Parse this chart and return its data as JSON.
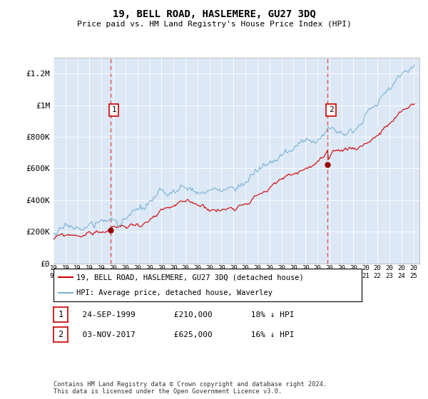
{
  "title": "19, BELL ROAD, HASLEMERE, GU27 3DQ",
  "subtitle": "Price paid vs. HM Land Registry's House Price Index (HPI)",
  "hpi_color": "#7ab3d4",
  "price_color": "#cc0000",
  "plot_bg": "#dce8f5",
  "transaction1": {
    "label": "1",
    "date": "24-SEP-1999",
    "price": 210000,
    "note": "18% ↓ HPI",
    "year": 1999.73
  },
  "transaction2": {
    "label": "2",
    "date": "03-NOV-2017",
    "price": 625000,
    "note": "16% ↓ HPI",
    "year": 2017.84
  },
  "ylim": [
    0,
    1300000
  ],
  "yticks": [
    0,
    200000,
    400000,
    600000,
    800000,
    1000000,
    1200000
  ],
  "ytick_labels": [
    "£0",
    "£200K",
    "£400K",
    "£600K",
    "£800K",
    "£1M",
    "£1.2M"
  ],
  "footer": "Contains HM Land Registry data © Crown copyright and database right 2024.\nThis data is licensed under the Open Government Licence v3.0.",
  "legend_label1": "19, BELL ROAD, HASLEMERE, GU27 3DQ (detached house)",
  "legend_label2": "HPI: Average price, detached house, Waverley"
}
